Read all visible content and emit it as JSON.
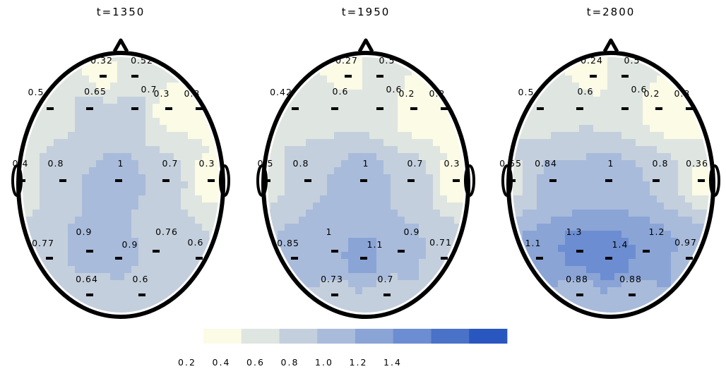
{
  "colorbar": {
    "bins": [
      0.2,
      0.4,
      0.6,
      0.8,
      1.0,
      1.2,
      1.4
    ],
    "tick_labels": [
      "0.2",
      "0.4",
      "0.6",
      "0.8",
      "1.0",
      "1.2",
      "1.4"
    ],
    "colors": [
      "#fbfbe6",
      "#dfe5e0",
      "#c4cfdd",
      "#a9bbdb",
      "#8aa4d6",
      "#6c8dd1",
      "#4a72c8",
      "#2a56bf"
    ]
  },
  "chart_data": [
    {
      "type": "heatmap",
      "title": "t=1350",
      "sensors": [
        {
          "label": "0.32",
          "value": 0.32
        },
        {
          "label": "0.52",
          "value": 0.52
        },
        {
          "label": "0.5",
          "value": 0.5
        },
        {
          "label": "0.65",
          "value": 0.65
        },
        {
          "label": "0.7",
          "value": 0.7
        },
        {
          "label": "0.3",
          "value": 0.3
        },
        {
          "label": "0.3",
          "value": 0.3
        },
        {
          "label": "0.4",
          "value": 0.4
        },
        {
          "label": "0.8",
          "value": 0.8
        },
        {
          "label": "1",
          "value": 1.0
        },
        {
          "label": "0.7",
          "value": 0.7
        },
        {
          "label": "0.3",
          "value": 0.3
        },
        {
          "label": "0.77",
          "value": 0.77
        },
        {
          "label": "0.9",
          "value": 0.9
        },
        {
          "label": "0.9",
          "value": 0.9
        },
        {
          "label": "0.76",
          "value": 0.76
        },
        {
          "label": "0.6",
          "value": 0.6
        },
        {
          "label": "0.64",
          "value": 0.64
        },
        {
          "label": "0.6",
          "value": 0.6
        }
      ]
    },
    {
      "type": "heatmap",
      "title": "t=1950",
      "sensors": [
        {
          "label": "0.27",
          "value": 0.27
        },
        {
          "label": "0.5",
          "value": 0.5
        },
        {
          "label": "0.42",
          "value": 0.42
        },
        {
          "label": "0.6",
          "value": 0.6
        },
        {
          "label": "0.6",
          "value": 0.6
        },
        {
          "label": "0.2",
          "value": 0.2
        },
        {
          "label": "0.2",
          "value": 0.2
        },
        {
          "label": "0.5",
          "value": 0.5
        },
        {
          "label": "0.8",
          "value": 0.8
        },
        {
          "label": "1",
          "value": 1.0
        },
        {
          "label": "0.7",
          "value": 0.7
        },
        {
          "label": "0.3",
          "value": 0.3
        },
        {
          "label": "0.85",
          "value": 0.85
        },
        {
          "label": "1",
          "value": 1.0
        },
        {
          "label": "1.1",
          "value": 1.1
        },
        {
          "label": "0.9",
          "value": 0.9
        },
        {
          "label": "0.71",
          "value": 0.71
        },
        {
          "label": "0.73",
          "value": 0.73
        },
        {
          "label": "0.7",
          "value": 0.7
        }
      ]
    },
    {
      "type": "heatmap",
      "title": "t=2800",
      "sensors": [
        {
          "label": "0.24",
          "value": 0.24
        },
        {
          "label": "0.5",
          "value": 0.5
        },
        {
          "label": "0.5",
          "value": 0.5
        },
        {
          "label": "0.6",
          "value": 0.6
        },
        {
          "label": "0.6",
          "value": 0.6
        },
        {
          "label": "0.2",
          "value": 0.2
        },
        {
          "label": "0.3",
          "value": 0.3
        },
        {
          "label": "0.55",
          "value": 0.55
        },
        {
          "label": "0.84",
          "value": 0.84
        },
        {
          "label": "1",
          "value": 1.0
        },
        {
          "label": "0.8",
          "value": 0.8
        },
        {
          "label": "0.36",
          "value": 0.36
        },
        {
          "label": "1.1",
          "value": 1.1
        },
        {
          "label": "1.3",
          "value": 1.3
        },
        {
          "label": "1.4",
          "value": 1.4
        },
        {
          "label": "1.2",
          "value": 1.2
        },
        {
          "label": "0.97",
          "value": 0.97
        },
        {
          "label": "0.88",
          "value": 0.88
        },
        {
          "label": "0.88",
          "value": 0.88
        }
      ]
    }
  ]
}
